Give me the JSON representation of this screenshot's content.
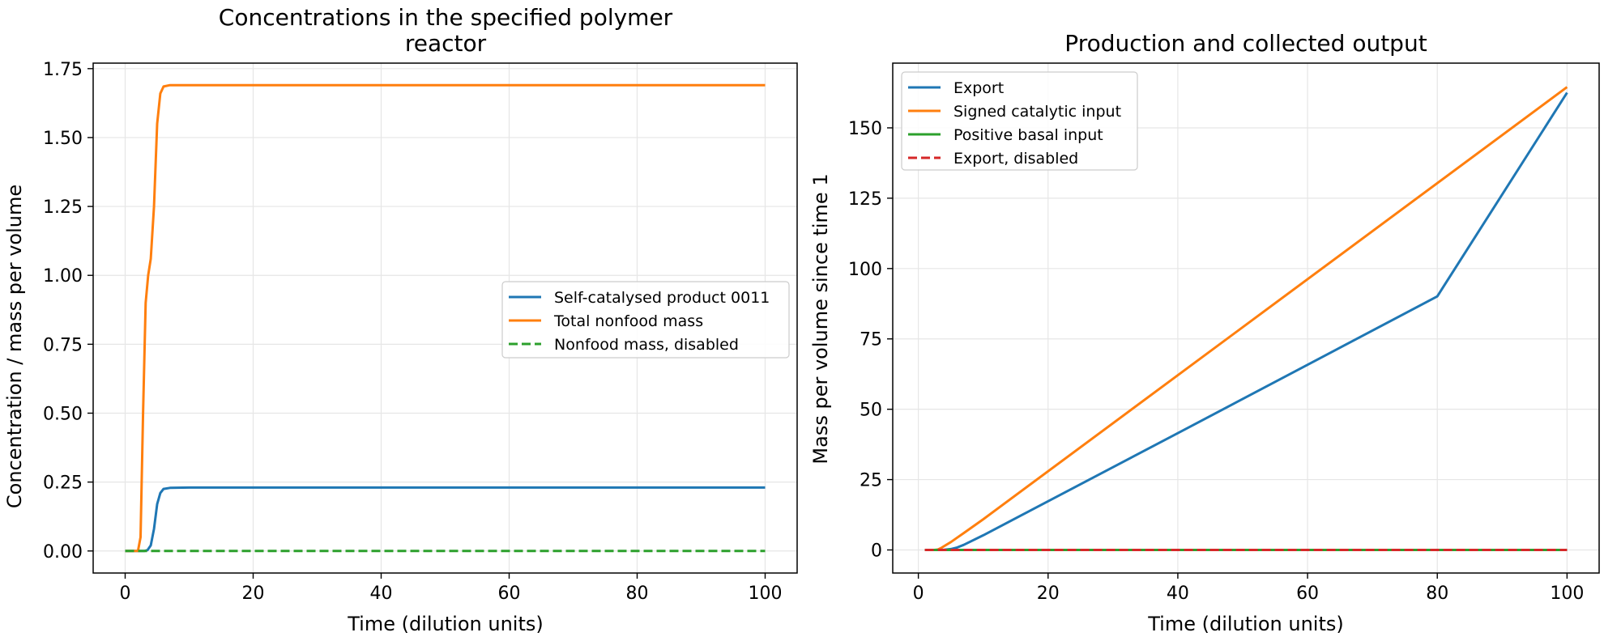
{
  "chart_data": [
    {
      "type": "line",
      "title_lines": [
        "Concentrations in the specified polymer",
        "reactor"
      ],
      "xlabel": "Time (dilution units)",
      "ylabel": "Concentration / mass per volume",
      "xlim": [
        -5,
        105
      ],
      "ylim": [
        -0.08,
        1.77
      ],
      "xticks": [
        0,
        20,
        40,
        60,
        80,
        100
      ],
      "xtick_labels": [
        "0",
        "20",
        "40",
        "60",
        "80",
        "100"
      ],
      "yticks": [
        0,
        0.25,
        0.5,
        0.75,
        1.0,
        1.25,
        1.5,
        1.75
      ],
      "ytick_labels": [
        "0.00",
        "0.25",
        "0.50",
        "0.75",
        "1.00",
        "1.25",
        "1.50",
        "1.75"
      ],
      "grid": true,
      "legend_position": "center-right",
      "series": [
        {
          "name": "Self-catalysed product 0011",
          "color": "#1f77b4",
          "dashed": false,
          "x": [
            0,
            3,
            3.5,
            4,
            4.5,
            5,
            5.5,
            6,
            7,
            10,
            100
          ],
          "y": [
            0,
            0,
            0.003,
            0.02,
            0.08,
            0.17,
            0.21,
            0.225,
            0.229,
            0.23,
            0.23
          ]
        },
        {
          "name": "Total nonfood mass",
          "color": "#ff7f0e",
          "dashed": false,
          "x": [
            0,
            2,
            2.4,
            2.8,
            3.2,
            3.6,
            4,
            4.5,
            5,
            5.5,
            6,
            7,
            10,
            100
          ],
          "y": [
            0,
            0,
            0.05,
            0.5,
            0.9,
            1.0,
            1.06,
            1.25,
            1.55,
            1.66,
            1.685,
            1.69,
            1.69,
            1.69
          ]
        },
        {
          "name": "Nonfood mass, disabled",
          "color": "#2ca02c",
          "dashed": true,
          "x": [
            0,
            100
          ],
          "y": [
            0,
            0
          ]
        }
      ]
    },
    {
      "type": "line",
      "title_lines": [
        "Production and collected output"
      ],
      "xlabel": "Time (dilution units)",
      "ylabel": "Mass per volume since time 1",
      "xlim": [
        -3.95,
        104.95
      ],
      "ylim": [
        -8.2,
        173
      ],
      "xticks": [
        0,
        20,
        40,
        60,
        80,
        100
      ],
      "xtick_labels": [
        "0",
        "20",
        "40",
        "60",
        "80",
        "100"
      ],
      "yticks": [
        0,
        25,
        50,
        75,
        100,
        125,
        150
      ],
      "ytick_labels": [
        "0",
        "25",
        "50",
        "75",
        "100",
        "125",
        "150"
      ],
      "grid": true,
      "legend_position": "upper-left",
      "series": [
        {
          "name": "Export",
          "color": "#1f77b4",
          "dashed": false,
          "x": [
            1,
            3,
            4,
            5,
            6,
            7,
            10,
            20,
            40,
            60,
            80,
            100
          ],
          "y": [
            0,
            0,
            0.05,
            0.3,
            0.9,
            1.8,
            5.2,
            17.3,
            41.5,
            65.8,
            90.1,
            162.5
          ]
        },
        {
          "name": "Signed catalytic input",
          "color": "#ff7f0e",
          "dashed": false,
          "x": [
            1,
            2.5,
            3,
            3.5,
            4,
            5,
            6,
            7,
            10,
            100
          ],
          "y": [
            0,
            0,
            0.15,
            0.7,
            1.4,
            2.8,
            4.4,
            6.0,
            10.9,
            164.5
          ]
        },
        {
          "name": "Positive basal input",
          "color": "#2ca02c",
          "dashed": false,
          "x": [
            1,
            100
          ],
          "y": [
            0,
            0
          ]
        },
        {
          "name": "Export, disabled",
          "color": "#d62728",
          "dashed": true,
          "x": [
            1,
            100
          ],
          "y": [
            0,
            0
          ]
        }
      ]
    }
  ]
}
